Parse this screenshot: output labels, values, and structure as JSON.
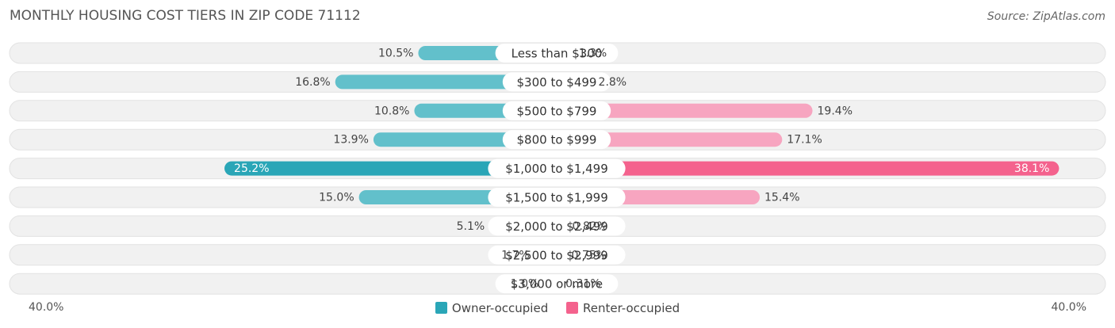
{
  "title": "MONTHLY HOUSING COST TIERS IN ZIP CODE 71112",
  "source": "Source: ZipAtlas.com",
  "axis": {
    "left_label": "40.0%",
    "right_label": "40.0%"
  },
  "legend": {
    "owner": "Owner-occupied",
    "renter": "Renter-occupied"
  },
  "colors": {
    "owner": "#62c0cb",
    "owner_strong": "#2aa6b7",
    "renter": "#f7a5c0",
    "renter_strong": "#f4628d",
    "row_bg": "#f1f1f1"
  },
  "chart_data": {
    "type": "bar",
    "orientation": "diverging-horizontal",
    "xlim": [
      -40,
      40
    ],
    "categories": [
      "Less than $300",
      "$300 to $499",
      "$500 to $799",
      "$800 to $999",
      "$1,000 to $1,499",
      "$1,500 to $1,999",
      "$2,000 to $2,499",
      "$2,500 to $2,999",
      "$3,000 or more"
    ],
    "series": [
      {
        "name": "Owner-occupied",
        "values": [
          10.5,
          16.8,
          10.8,
          13.9,
          25.2,
          15.0,
          5.1,
          1.7,
          1.0
        ],
        "labels": [
          "10.5%",
          "16.8%",
          "10.8%",
          "13.9%",
          "25.2%",
          "15.0%",
          "5.1%",
          "1.7%",
          "1.0%"
        ]
      },
      {
        "name": "Renter-occupied",
        "values": [
          1.3,
          2.8,
          19.4,
          17.1,
          38.1,
          15.4,
          0.82,
          0.75,
          0.31
        ],
        "labels": [
          "1.3%",
          "2.8%",
          "19.4%",
          "17.1%",
          "38.1%",
          "15.4%",
          "0.82%",
          "0.75%",
          "0.31%"
        ]
      }
    ]
  }
}
